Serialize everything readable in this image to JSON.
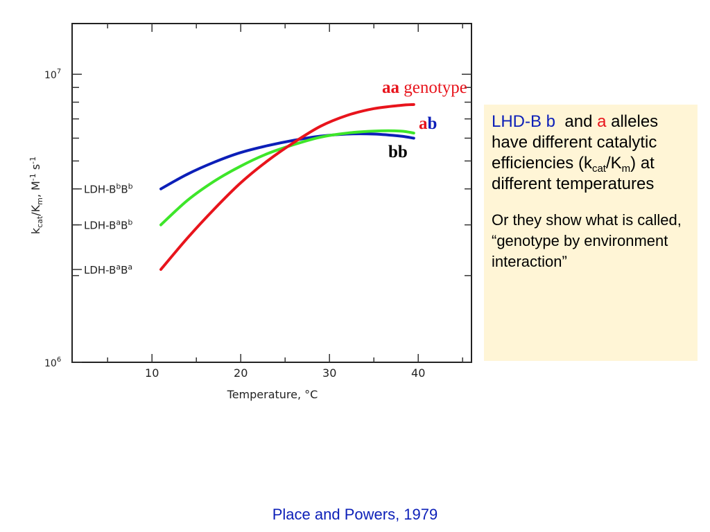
{
  "chart_data": {
    "type": "line",
    "xlabel": "Temperature, °C",
    "ylabel": "kcat/Km, M⁻¹ s⁻¹",
    "y_scale": "log",
    "xlim": [
      1,
      46
    ],
    "ylim": [
      1000000,
      15000000
    ],
    "x_ticks": [
      10,
      20,
      30,
      40
    ],
    "y_tick_labels": [
      {
        "value": 10000000,
        "base": "10",
        "exp": "7"
      },
      {
        "value": 1000000,
        "base": "10",
        "exp": "6"
      }
    ],
    "series": [
      {
        "key": "bb",
        "name_base": "LDH-B",
        "name_sup": "b",
        "name_mid": "B",
        "name_sup2": "b",
        "color": "#0c1fb8",
        "x": [
          11,
          14,
          17,
          20,
          23,
          26,
          29,
          32,
          35,
          38,
          39.5
        ],
        "y": [
          4000000,
          4500000,
          4950000,
          5350000,
          5650000,
          5900000,
          6100000,
          6200000,
          6200000,
          6100000,
          6000000
        ]
      },
      {
        "key": "ab",
        "name_base": "LDH-B",
        "name_sup": "a",
        "name_mid": "B",
        "name_sup2": "b",
        "color": "#3ee62a",
        "x": [
          11,
          14,
          17,
          20,
          23,
          26,
          29,
          32,
          35,
          38,
          39.5
        ],
        "y": [
          3000000,
          3650000,
          4250000,
          4800000,
          5300000,
          5700000,
          6050000,
          6250000,
          6350000,
          6350000,
          6250000
        ]
      },
      {
        "key": "aa",
        "name_base": "LDH-B",
        "name_sup": "a",
        "name_mid": "B",
        "name_sup2": "a",
        "color": "#e8141c",
        "x": [
          11,
          14,
          17,
          20,
          23,
          26,
          29,
          32,
          35,
          38,
          39.5
        ],
        "y": [
          2100000,
          2700000,
          3400000,
          4200000,
          5000000,
          5800000,
          6600000,
          7200000,
          7600000,
          7800000,
          7850000
        ]
      }
    ],
    "callouts": {
      "aa": {
        "bold": "aa",
        "rest": " genotype"
      },
      "ab": {
        "first": "a",
        "second": "b"
      },
      "bb": {
        "text": "bb"
      }
    }
  },
  "colors": {
    "red": "#e8141c",
    "blue": "#0c1fb8",
    "green": "#3ee62a",
    "note_bg": "#fff5d6"
  },
  "info_box": {
    "line1_blue": "LHD-B b",
    "line1_and": "and",
    "line1_red": "a",
    "line2": "alleles have different catalytic efficiencies (k",
    "sub_cat": "cat",
    "slash_k": "/K",
    "sub_m": "m",
    "line2_end": ") at different temperatures",
    "para2": "Or they show what is called, “genotype by environment interaction”"
  },
  "citation": "Place and Powers, 1979"
}
